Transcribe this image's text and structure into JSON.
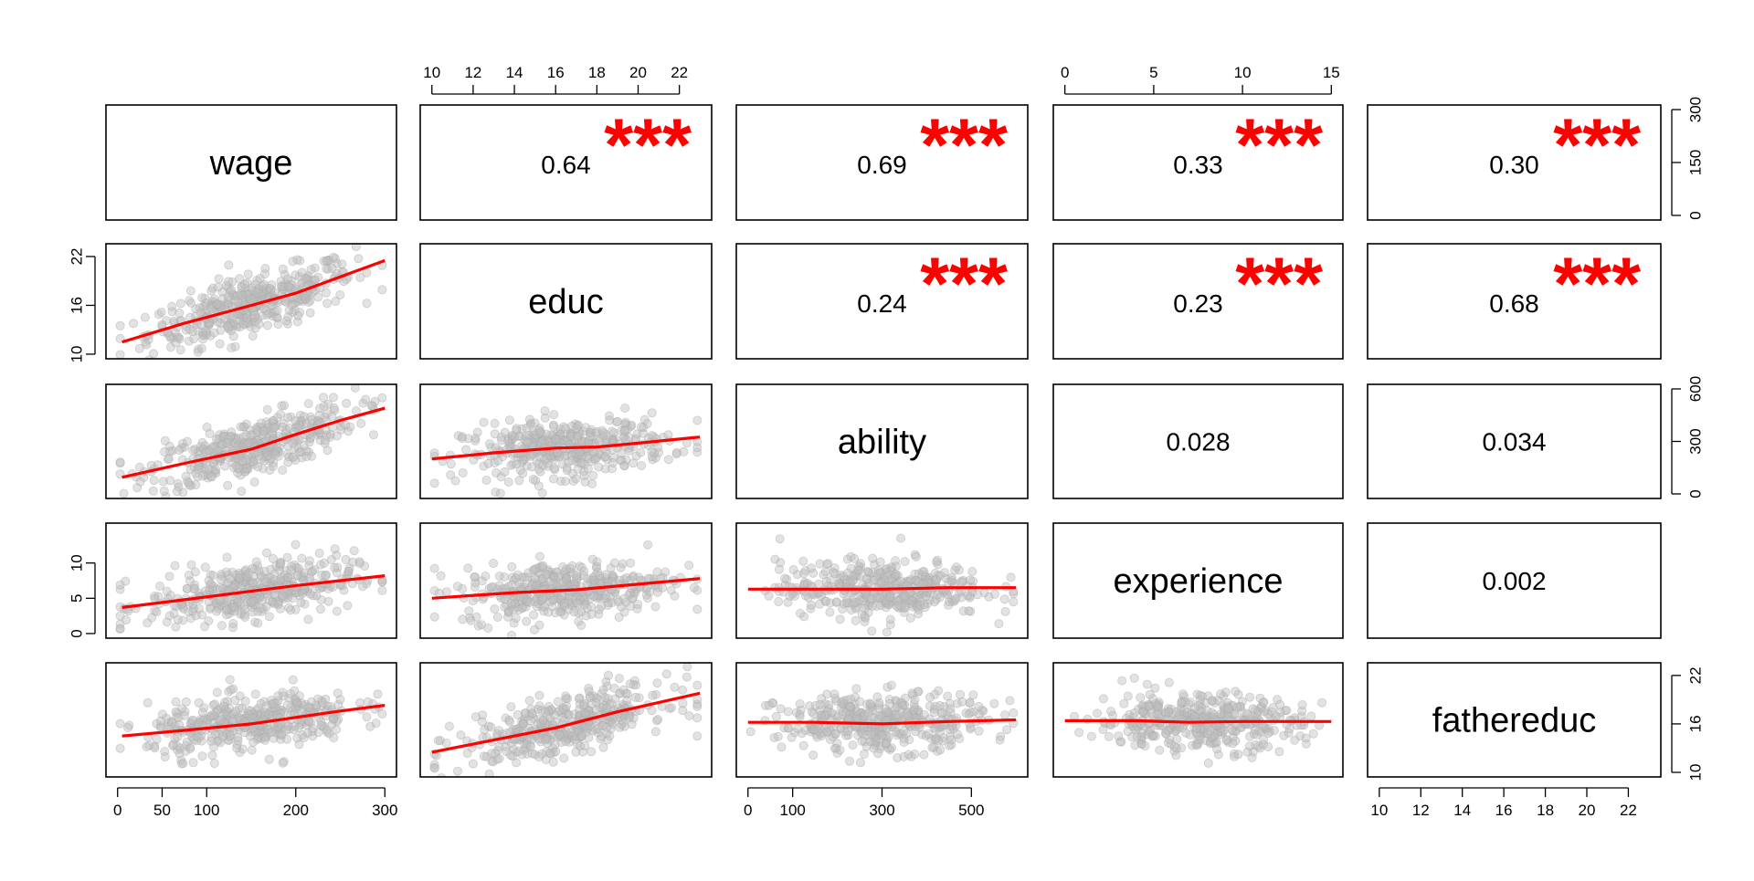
{
  "chart_data": {
    "type": "scatter",
    "layout": "pairs-matrix",
    "variables": [
      "wage",
      "educ",
      "ability",
      "experience",
      "fathereduc"
    ],
    "ranges": {
      "wage": [
        0,
        300
      ],
      "educ": [
        10,
        23
      ],
      "ability": [
        0,
        600
      ],
      "experience": [
        0,
        15
      ],
      "fathereduc": [
        10,
        23
      ]
    },
    "axis_ticks": {
      "bottom": [
        {
          "var": "wage",
          "col": 0,
          "ticks": [
            0,
            50,
            100,
            200,
            300
          ]
        },
        {
          "var": "ability",
          "col": 2,
          "ticks": [
            0,
            100,
            300,
            500
          ]
        },
        {
          "var": "fathereduc",
          "col": 4,
          "ticks": [
            10,
            12,
            14,
            16,
            18,
            20,
            22
          ]
        }
      ],
      "top": [
        {
          "var": "educ",
          "col": 1,
          "ticks": [
            10,
            12,
            14,
            16,
            18,
            20,
            22
          ]
        },
        {
          "var": "experience",
          "col": 3,
          "ticks": [
            0,
            5,
            10,
            15
          ]
        }
      ],
      "left": [
        {
          "var": "educ",
          "row": 1,
          "ticks": [
            10,
            16,
            22
          ]
        },
        {
          "var": "experience",
          "row": 3,
          "ticks": [
            0,
            5,
            10
          ]
        }
      ],
      "right": [
        {
          "var": "wage",
          "row": 0,
          "ticks": [
            0,
            150,
            300
          ]
        },
        {
          "var": "ability",
          "row": 2,
          "ticks": [
            0,
            300,
            600
          ]
        },
        {
          "var": "fathereduc",
          "row": 4,
          "ticks": [
            10,
            16,
            22
          ]
        }
      ]
    },
    "correlations": [
      {
        "row": 0,
        "col": 1,
        "value": "0.64",
        "stars": "***"
      },
      {
        "row": 0,
        "col": 2,
        "value": "0.69",
        "stars": "***"
      },
      {
        "row": 0,
        "col": 3,
        "value": "0.33",
        "stars": "***"
      },
      {
        "row": 0,
        "col": 4,
        "value": "0.30",
        "stars": "***"
      },
      {
        "row": 1,
        "col": 2,
        "value": "0.24",
        "stars": "***"
      },
      {
        "row": 1,
        "col": 3,
        "value": "0.23",
        "stars": "***"
      },
      {
        "row": 1,
        "col": 4,
        "value": "0.68",
        "stars": "***"
      },
      {
        "row": 2,
        "col": 3,
        "value": "0.028",
        "stars": ""
      },
      {
        "row": 2,
        "col": 4,
        "value": "0.034",
        "stars": ""
      },
      {
        "row": 3,
        "col": 4,
        "value": "0.002",
        "stars": ""
      }
    ],
    "scatter_panels": [
      {
        "row": 1,
        "col": 0,
        "x": "wage",
        "y": "educ",
        "fit": [
          [
            5,
            11.5
          ],
          [
            75,
            13.8
          ],
          [
            150,
            16.0
          ],
          [
            200,
            17.5
          ],
          [
            250,
            19.5
          ],
          [
            300,
            21.5
          ]
        ]
      },
      {
        "row": 2,
        "col": 0,
        "x": "wage",
        "y": "ability",
        "fit": [
          [
            5,
            95
          ],
          [
            80,
            180
          ],
          [
            150,
            255
          ],
          [
            200,
            340
          ],
          [
            250,
            420
          ],
          [
            300,
            490
          ]
        ]
      },
      {
        "row": 2,
        "col": 1,
        "x": "educ",
        "y": "ability",
        "fit": [
          [
            10,
            200
          ],
          [
            13,
            235
          ],
          [
            16,
            262
          ],
          [
            18,
            268
          ],
          [
            20,
            290
          ],
          [
            23,
            325
          ]
        ]
      },
      {
        "row": 3,
        "col": 0,
        "x": "wage",
        "y": "experience",
        "fit": [
          [
            5,
            3.7
          ],
          [
            75,
            4.8
          ],
          [
            150,
            6.0
          ],
          [
            200,
            6.8
          ],
          [
            250,
            7.5
          ],
          [
            300,
            8.2
          ]
        ]
      },
      {
        "row": 3,
        "col": 1,
        "x": "educ",
        "y": "experience",
        "fit": [
          [
            10,
            5.0
          ],
          [
            14,
            5.8
          ],
          [
            17,
            6.2
          ],
          [
            20,
            7.0
          ],
          [
            23,
            7.8
          ]
        ]
      },
      {
        "row": 3,
        "col": 2,
        "x": "ability",
        "y": "experience",
        "fit": [
          [
            0,
            6.3
          ],
          [
            150,
            6.3
          ],
          [
            300,
            6.3
          ],
          [
            450,
            6.5
          ],
          [
            600,
            6.5
          ]
        ]
      },
      {
        "row": 4,
        "col": 0,
        "x": "wage",
        "y": "fathereduc",
        "fit": [
          [
            5,
            14.5
          ],
          [
            75,
            15.2
          ],
          [
            150,
            16.0
          ],
          [
            200,
            16.8
          ],
          [
            250,
            17.6
          ],
          [
            300,
            18.3
          ]
        ]
      },
      {
        "row": 4,
        "col": 1,
        "x": "educ",
        "y": "fathereduc",
        "fit": [
          [
            10,
            12.5
          ],
          [
            13,
            14.0
          ],
          [
            16,
            15.5
          ],
          [
            19,
            17.5
          ],
          [
            23,
            19.8
          ]
        ]
      },
      {
        "row": 4,
        "col": 2,
        "x": "ability",
        "y": "fathereduc",
        "fit": [
          [
            0,
            16.2
          ],
          [
            150,
            16.2
          ],
          [
            300,
            16.0
          ],
          [
            450,
            16.3
          ],
          [
            600,
            16.5
          ]
        ]
      },
      {
        "row": 4,
        "col": 3,
        "x": "experience",
        "y": "fathereduc",
        "fit": [
          [
            0,
            16.4
          ],
          [
            4,
            16.4
          ],
          [
            7,
            16.2
          ],
          [
            10,
            16.3
          ],
          [
            15,
            16.3
          ]
        ]
      }
    ],
    "colors": {
      "points": "#bebebe",
      "fit": "#ff0000",
      "stars": "#ff0000"
    }
  }
}
